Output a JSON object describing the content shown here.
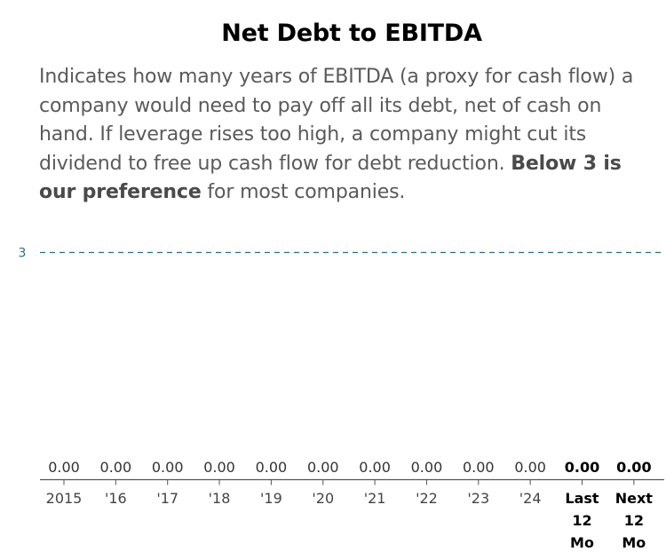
{
  "page": {
    "title": "Net Debt to EBITDA",
    "description_part1": "Indicates how many years of EBITDA (a proxy for cash flow) a company would need to pay off all its debt, net of cash on hand. If leverage rises too high, a company might cut its dividend to free up cash flow for debt reduction. ",
    "description_bold": "Below 3 is our preference",
    "description_part2": " for most companies."
  },
  "chart_data": {
    "type": "bar",
    "title": "Net Debt to EBITDA",
    "categories": [
      "2015",
      "'16",
      "'17",
      "'18",
      "'19",
      "'20",
      "'21",
      "'22",
      "'23",
      "'24",
      "Last 12 Mo",
      "Next 12 Mo"
    ],
    "category_label_lines": [
      [
        "2015"
      ],
      [
        "'16"
      ],
      [
        "'17"
      ],
      [
        "'18"
      ],
      [
        "'19"
      ],
      [
        "'20"
      ],
      [
        "'21"
      ],
      [
        "'22"
      ],
      [
        "'23"
      ],
      [
        "'24"
      ],
      [
        "Last",
        "12",
        "Mo"
      ],
      [
        "Next",
        "12",
        "Mo"
      ]
    ],
    "values": [
      0.0,
      0.0,
      0.0,
      0.0,
      0.0,
      0.0,
      0.0,
      0.0,
      0.0,
      0.0,
      0.0,
      0.0
    ],
    "value_labels": [
      "0.00",
      "0.00",
      "0.00",
      "0.00",
      "0.00",
      "0.00",
      "0.00",
      "0.00",
      "0.00",
      "0.00",
      "0.00",
      "0.00"
    ],
    "bold_categories": [
      10,
      11
    ],
    "reference_line": {
      "value": 3,
      "label": "3",
      "style": "dashed"
    },
    "ylim": [
      0,
      3
    ],
    "xlabel": "",
    "ylabel": "",
    "grid": false,
    "legend": "none",
    "colors": {
      "reference_line": "#2c6e7f",
      "reference_label": "#2c6e7f",
      "axis": "#555555",
      "tick_label": "#444444",
      "tick_label_bold": "#000000",
      "value_label": "#333333",
      "value_label_bold": "#000000",
      "bar": "#2c6e7f"
    }
  }
}
